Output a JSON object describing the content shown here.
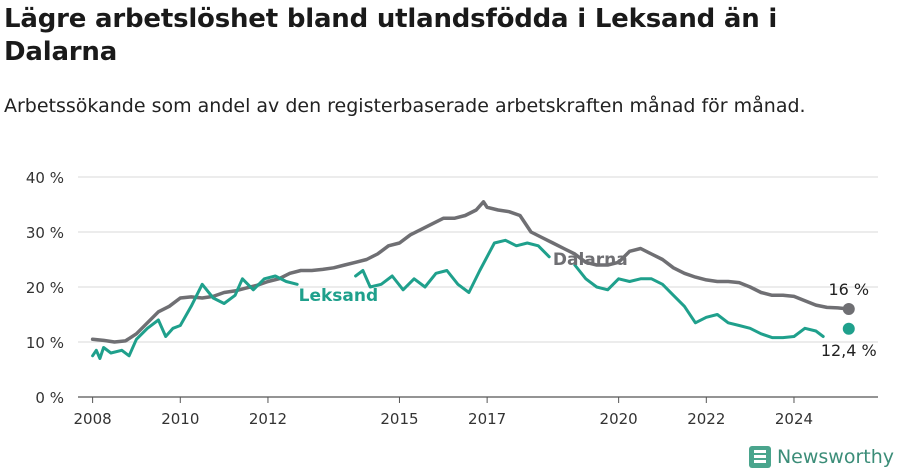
{
  "header": {
    "title": "Lägre arbetslöshet bland utlandsfödda i Leksand än i Dalarna",
    "subtitle": "Arbetssökande som andel av den registerbaserade arbetskraften månad för månad."
  },
  "brand": {
    "name": "Newsworthy",
    "icon": "newsworthy-logo-icon",
    "color": "#4aa58d"
  },
  "chart_data": {
    "type": "line",
    "title": "Lägre arbetslöshet bland utlandsfödda i Leksand än i Dalarna",
    "subtitle": "Arbetssökande som andel av den registerbaserade arbetskraften månad för månad.",
    "xlabel": "",
    "ylabel": "",
    "x_ticks": [
      "2008",
      "2010",
      "2012",
      "2015",
      "2017",
      "2020",
      "2022",
      "2024"
    ],
    "y_ticks": [
      "0 %",
      "10 %",
      "20 %",
      "30 %",
      "40 %"
    ],
    "ylim": [
      0,
      40
    ],
    "xlim": [
      "2007-09",
      "2025-12"
    ],
    "grid": "horizontal",
    "legend": "inline labels",
    "series": [
      {
        "name": "Dalarna",
        "color": "#6f6f73",
        "end_label": "16 %",
        "points": [
          [
            "2008-01",
            10.5
          ],
          [
            "2008-04",
            10.3
          ],
          [
            "2008-07",
            10.0
          ],
          [
            "2008-10",
            10.2
          ],
          [
            "2009-01",
            11.5
          ],
          [
            "2009-04",
            13.5
          ],
          [
            "2009-07",
            15.5
          ],
          [
            "2009-10",
            16.5
          ],
          [
            "2010-01",
            18.0
          ],
          [
            "2010-04",
            18.2
          ],
          [
            "2010-07",
            18.0
          ],
          [
            "2010-10",
            18.3
          ],
          [
            "2011-01",
            19.0
          ],
          [
            "2011-04",
            19.3
          ],
          [
            "2011-07",
            19.8
          ],
          [
            "2011-10",
            20.3
          ],
          [
            "2012-01",
            21.0
          ],
          [
            "2012-04",
            21.5
          ],
          [
            "2012-07",
            22.5
          ],
          [
            "2012-10",
            23.0
          ],
          [
            "2013-01",
            23.0
          ],
          [
            "2013-04",
            23.2
          ],
          [
            "2013-07",
            23.5
          ],
          [
            "2013-10",
            24.0
          ],
          [
            "2014-01",
            24.5
          ],
          [
            "2014-04",
            25.0
          ],
          [
            "2014-07",
            26.0
          ],
          [
            "2014-10",
            27.5
          ],
          [
            "2015-01",
            28.0
          ],
          [
            "2015-04",
            29.5
          ],
          [
            "2015-07",
            30.5
          ],
          [
            "2015-10",
            31.5
          ],
          [
            "2016-01",
            32.5
          ],
          [
            "2016-04",
            32.5
          ],
          [
            "2016-07",
            33.0
          ],
          [
            "2016-10",
            34.0
          ],
          [
            "2016-12",
            35.5
          ],
          [
            "2017-01",
            34.5
          ],
          [
            "2017-04",
            34.0
          ],
          [
            "2017-07",
            33.7
          ],
          [
            "2017-10",
            33.0
          ],
          [
            "2018-01",
            30.0
          ],
          [
            "2018-04",
            29.0
          ],
          [
            "2018-07",
            28.0
          ],
          [
            "2018-10",
            27.0
          ],
          [
            "2019-01",
            26.0
          ],
          [
            "2019-04",
            24.5
          ],
          [
            "2019-07",
            24.0
          ],
          [
            "2019-10",
            24.0
          ],
          [
            "2020-01",
            24.5
          ],
          [
            "2020-04",
            26.5
          ],
          [
            "2020-07",
            27.0
          ],
          [
            "2020-10",
            26.0
          ],
          [
            "2021-01",
            25.0
          ],
          [
            "2021-04",
            23.5
          ],
          [
            "2021-07",
            22.5
          ],
          [
            "2021-10",
            21.8
          ],
          [
            "2022-01",
            21.3
          ],
          [
            "2022-04",
            21.0
          ],
          [
            "2022-07",
            21.0
          ],
          [
            "2022-10",
            20.8
          ],
          [
            "2023-01",
            20.0
          ],
          [
            "2023-04",
            19.0
          ],
          [
            "2023-07",
            18.5
          ],
          [
            "2023-10",
            18.5
          ],
          [
            "2024-01",
            18.3
          ],
          [
            "2024-04",
            17.5
          ],
          [
            "2024-07",
            16.7
          ],
          [
            "2024-10",
            16.3
          ],
          [
            "2025-01",
            16.2
          ],
          [
            "2025-04",
            16.0
          ]
        ]
      },
      {
        "name": "Leksand",
        "color": "#1fa08c",
        "end_label": "12,4 %",
        "points": [
          [
            "2008-01",
            7.5
          ],
          [
            "2008-02",
            8.5
          ],
          [
            "2008-03",
            7.0
          ],
          [
            "2008-04",
            9.0
          ],
          [
            "2008-06",
            8.0
          ],
          [
            "2008-09",
            8.5
          ],
          [
            "2008-11",
            7.5
          ],
          [
            "2009-01",
            10.5
          ],
          [
            "2009-04",
            12.5
          ],
          [
            "2009-07",
            14.0
          ],
          [
            "2009-09",
            11.0
          ],
          [
            "2009-11",
            12.5
          ],
          [
            "2010-01",
            13.0
          ],
          [
            "2010-04",
            16.5
          ],
          [
            "2010-07",
            20.5
          ],
          [
            "2010-10",
            18.0
          ],
          [
            "2011-01",
            17.0
          ],
          [
            "2011-04",
            18.5
          ],
          [
            "2011-06",
            21.5
          ],
          [
            "2011-09",
            19.5
          ],
          [
            "2011-12",
            21.5
          ],
          [
            "2012-03",
            22.0
          ],
          [
            "2012-06",
            21.0
          ],
          [
            "2012-09",
            20.5
          ]
        ],
        "points_cont": [
          [
            "2014-01",
            22.0
          ],
          [
            "2014-03",
            23.0
          ],
          [
            "2014-05",
            20.0
          ],
          [
            "2014-08",
            20.5
          ],
          [
            "2014-11",
            22.0
          ],
          [
            "2015-02",
            19.5
          ],
          [
            "2015-05",
            21.5
          ],
          [
            "2015-08",
            20.0
          ],
          [
            "2015-11",
            22.5
          ],
          [
            "2016-02",
            23.0
          ],
          [
            "2016-05",
            20.5
          ],
          [
            "2016-08",
            19.0
          ],
          [
            "2016-11",
            23.0
          ],
          [
            "2017-03",
            28.0
          ],
          [
            "2017-06",
            28.5
          ],
          [
            "2017-09",
            27.5
          ],
          [
            "2017-12",
            28.0
          ],
          [
            "2018-03",
            27.5
          ],
          [
            "2018-06",
            25.5
          ]
        ],
        "points_cont2": [
          [
            "2019-01",
            24.0
          ],
          [
            "2019-04",
            21.5
          ],
          [
            "2019-07",
            20.0
          ],
          [
            "2019-10",
            19.5
          ],
          [
            "2020-01",
            21.5
          ],
          [
            "2020-04",
            21.0
          ],
          [
            "2020-07",
            21.5
          ],
          [
            "2020-10",
            21.5
          ],
          [
            "2021-01",
            20.5
          ],
          [
            "2021-04",
            18.5
          ],
          [
            "2021-07",
            16.5
          ],
          [
            "2021-10",
            13.5
          ],
          [
            "2022-01",
            14.5
          ],
          [
            "2022-04",
            15.0
          ],
          [
            "2022-07",
            13.5
          ],
          [
            "2022-10",
            13.0
          ],
          [
            "2023-01",
            12.5
          ],
          [
            "2023-04",
            11.5
          ],
          [
            "2023-07",
            10.8
          ],
          [
            "2023-10",
            10.8
          ],
          [
            "2024-01",
            11.0
          ],
          [
            "2024-04",
            12.5
          ],
          [
            "2024-07",
            12.0
          ],
          [
            "2024-09",
            11.0
          ]
        ],
        "end_point": [
          "2025-04",
          12.4
        ]
      }
    ]
  }
}
